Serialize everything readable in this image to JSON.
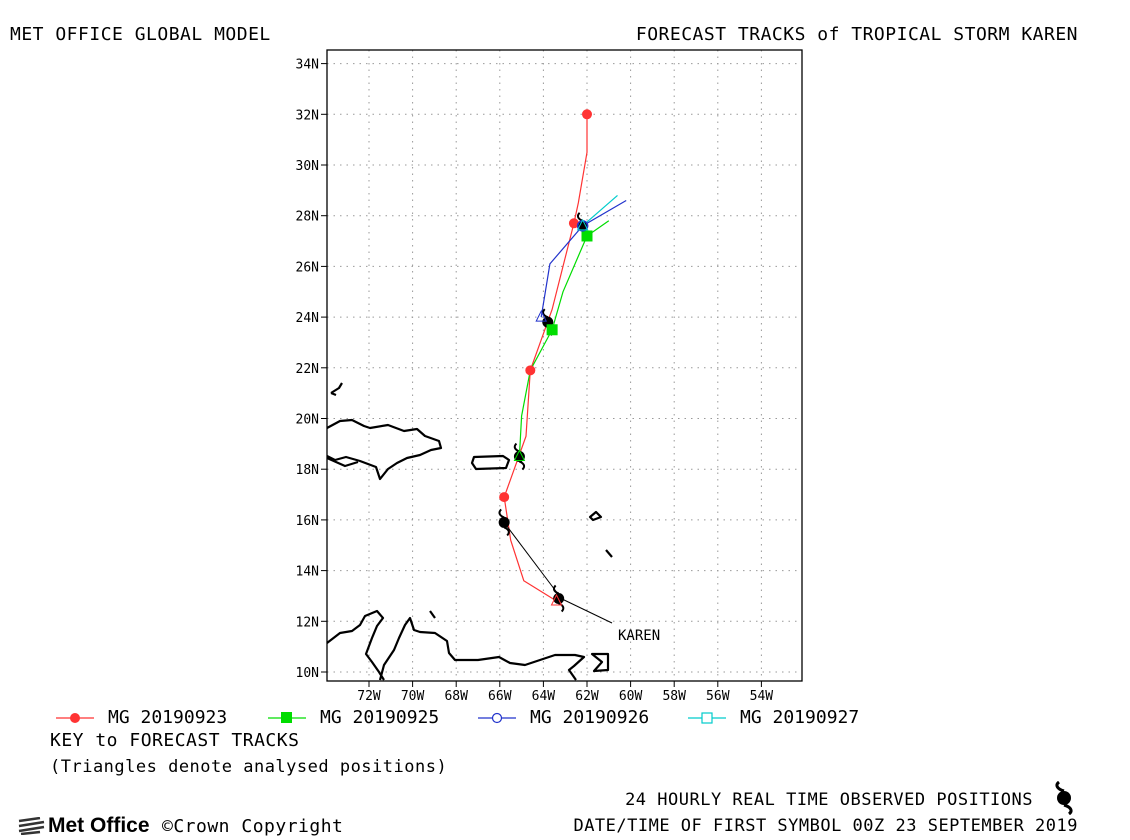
{
  "header": {
    "left_title": "MET OFFICE GLOBAL MODEL",
    "right_title": "FORECAST TRACKS of TROPICAL STORM KAREN"
  },
  "chart_data": {
    "type": "map",
    "storm_label": "KAREN",
    "lat_ticks": [
      "10N",
      "12N",
      "14N",
      "16N",
      "18N",
      "20N",
      "22N",
      "24N",
      "26N",
      "28N",
      "30N",
      "32N",
      "34N"
    ],
    "lon_ticks": [
      "72W",
      "70W",
      "68W",
      "66W",
      "64W",
      "62W",
      "60W",
      "58W",
      "56W",
      "54W"
    ],
    "lon_range": [
      -74,
      -52.5
    ],
    "lat_range": [
      9.6,
      34.6
    ],
    "grid": "dotted",
    "observed_positions": [
      {
        "lon": -63.3,
        "lat": 12.9
      },
      {
        "lon": -65.8,
        "lat": 15.9
      },
      {
        "lon": -65.1,
        "lat": 18.5
      },
      {
        "lon": -63.8,
        "lat": 23.8
      },
      {
        "lon": -62.2,
        "lat": 27.6
      }
    ],
    "series": [
      {
        "name": "MG 20190923",
        "color": "#ff3333",
        "marker": "filled-circle",
        "track": [
          {
            "lon": -63.4,
            "lat": 12.8
          },
          {
            "lon": -64.9,
            "lat": 13.6
          },
          {
            "lon": -65.5,
            "lat": 15.2
          },
          {
            "lon": -65.8,
            "lat": 16.9
          },
          {
            "lon": -64.8,
            "lat": 19.3
          },
          {
            "lon": -64.6,
            "lat": 21.9
          },
          {
            "lon": -63.6,
            "lat": 24.3
          },
          {
            "lon": -63.1,
            "lat": 26.0
          },
          {
            "lon": -62.6,
            "lat": 27.7
          },
          {
            "lon": -62.4,
            "lat": 28.5
          },
          {
            "lon": -62.0,
            "lat": 30.5
          },
          {
            "lon": -62.0,
            "lat": 32.0
          }
        ],
        "markers": [
          {
            "lon": -65.8,
            "lat": 16.9
          },
          {
            "lon": -64.6,
            "lat": 21.9
          },
          {
            "lon": -62.6,
            "lat": 27.7
          },
          {
            "lon": -62.0,
            "lat": 32.0
          }
        ]
      },
      {
        "name": "MG 20190925",
        "color": "#00dd00",
        "marker": "filled-square",
        "track": [
          {
            "lon": -65.1,
            "lat": 18.5
          },
          {
            "lon": -65.0,
            "lat": 20.1
          },
          {
            "lon": -64.6,
            "lat": 21.9
          },
          {
            "lon": -63.6,
            "lat": 23.5
          },
          {
            "lon": -63.1,
            "lat": 25.0
          },
          {
            "lon": -62.0,
            "lat": 27.2
          },
          {
            "lon": -61.0,
            "lat": 27.8
          }
        ],
        "markers": [
          {
            "lon": -63.6,
            "lat": 23.5
          },
          {
            "lon": -62.0,
            "lat": 27.2
          }
        ]
      },
      {
        "name": "MG 20190926",
        "color": "#2233cc",
        "marker": "open-circle",
        "track": [
          {
            "lon": -64.1,
            "lat": 24.0
          },
          {
            "lon": -63.7,
            "lat": 26.1
          },
          {
            "lon": -62.2,
            "lat": 27.6
          },
          {
            "lon": -60.2,
            "lat": 28.6
          }
        ],
        "markers": [
          {
            "lon": -62.2,
            "lat": 27.6
          }
        ]
      },
      {
        "name": "MG 20190927",
        "color": "#00cccc",
        "marker": "open-square",
        "track": [
          {
            "lon": -62.2,
            "lat": 27.6
          },
          {
            "lon": -60.6,
            "lat": 28.8
          }
        ],
        "markers": []
      }
    ]
  },
  "legend": {
    "items": [
      {
        "label": "MG 20190923",
        "color": "#ff3333",
        "marker": "filled-circle"
      },
      {
        "label": "MG 20190925",
        "color": "#00dd00",
        "marker": "filled-square"
      },
      {
        "label": "MG 20190926",
        "color": "#2233cc",
        "marker": "open-circle"
      },
      {
        "label": "MG 20190927",
        "color": "#00cccc",
        "marker": "open-square"
      }
    ]
  },
  "key": {
    "title": "KEY to FORECAST TRACKS",
    "note": "(Triangles denote analysed positions)"
  },
  "footer": {
    "observed_text": "24 HOURLY REAL TIME OBSERVED POSITIONS",
    "first_symbol_text": "DATE/TIME OF FIRST SYMBOL 00Z 23 SEPTEMBER 2019",
    "logo_text": "Met Office",
    "copyright_text": "©Crown Copyright"
  },
  "icons": {
    "hurricane": "hurricane-symbol-icon",
    "logo": "met-office-logo-icon"
  }
}
